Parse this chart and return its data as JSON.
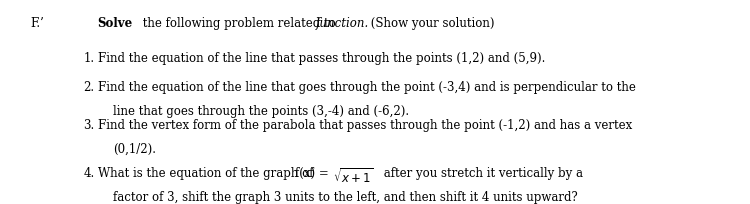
{
  "background_color": "#ffffff",
  "fig_width": 7.5,
  "fig_height": 2.05,
  "dpi": 100,
  "label_F": "F.’",
  "header_bold": "Solve",
  "header_rest": " the following problem related to ",
  "header_italic": "function.",
  "header_end": " (Show your solution)",
  "item1_num": "1.",
  "item1_text": " Find the equation of the line that passes through the points (1,2) and (5,9).",
  "item2_num": "2.",
  "item2_line1": " Find the equation of the line that goes through the point (-3,4) and is perpendicular to the",
  "item2_line2": "line that goes through the points (3,-4) and (-6,2).",
  "item3_num": "3.",
  "item3_line1": " Find the vertex form of the parabola that passes through the point (-1,2) and has a vertex",
  "item3_line2": "(0,1/2).",
  "item4_num": "4.",
  "item4_line1_pre": " What is the equation of the graph of ",
  "item4_line1_func_pre": "f(x) = ",
  "item4_line1_sqrt": "√x + 1",
  "item4_line1_post": " after you stretch it vertically by a",
  "item4_line2": "factor of 3, shift the graph 3 units to the left, and then shift it 4 units upward?",
  "font_size_main": 8.5,
  "font_size_header": 8.5,
  "text_color": "#000000",
  "indent_items": 0.13,
  "indent_sub": 0.165
}
